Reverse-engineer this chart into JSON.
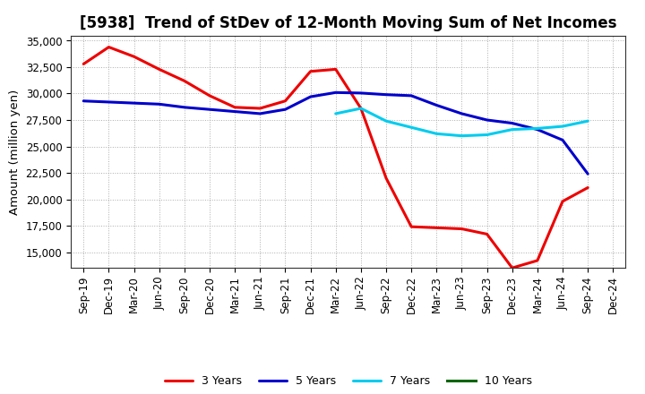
{
  "title": "[5938]  Trend of StDev of 12-Month Moving Sum of Net Incomes",
  "ylabel": "Amount (million yen)",
  "ylim": [
    13500,
    35500
  ],
  "yticks": [
    15000,
    17500,
    20000,
    22500,
    25000,
    27500,
    30000,
    32500,
    35000
  ],
  "x_labels": [
    "Sep-19",
    "Dec-19",
    "Mar-20",
    "Jun-20",
    "Sep-20",
    "Dec-20",
    "Mar-21",
    "Jun-21",
    "Sep-21",
    "Dec-21",
    "Mar-22",
    "Jun-22",
    "Sep-22",
    "Dec-22",
    "Mar-23",
    "Jun-23",
    "Sep-23",
    "Dec-23",
    "Mar-24",
    "Jun-24",
    "Sep-24",
    "Dec-24"
  ],
  "series": {
    "3 Years": {
      "color": "#ee0000",
      "data": [
        32800,
        34400,
        33500,
        32300,
        31200,
        29800,
        28700,
        28600,
        29300,
        32100,
        32300,
        28600,
        22000,
        17400,
        17300,
        17200,
        16700,
        13500,
        14200,
        19800,
        21100,
        null
      ]
    },
    "5 Years": {
      "color": "#0000cc",
      "data": [
        29300,
        29200,
        29100,
        29000,
        28700,
        28500,
        28300,
        28100,
        28500,
        29700,
        30100,
        30050,
        29900,
        29800,
        28900,
        28100,
        27500,
        27200,
        26600,
        25600,
        22400,
        null
      ]
    },
    "7 Years": {
      "color": "#00ccee",
      "data": [
        null,
        null,
        null,
        null,
        null,
        null,
        null,
        null,
        null,
        null,
        28100,
        28600,
        27400,
        26800,
        26200,
        26000,
        26100,
        26600,
        26700,
        26900,
        27400,
        null
      ]
    },
    "10 Years": {
      "color": "#006600",
      "data": [
        null,
        null,
        null,
        null,
        null,
        null,
        null,
        null,
        null,
        null,
        null,
        null,
        null,
        null,
        null,
        null,
        null,
        null,
        null,
        null,
        null,
        null
      ]
    }
  },
  "legend_order": [
    "3 Years",
    "5 Years",
    "7 Years",
    "10 Years"
  ],
  "background_color": "#ffffff",
  "grid_color": "#999999",
  "title_fontsize": 12,
  "axis_fontsize": 8.5,
  "ylabel_fontsize": 9.5
}
